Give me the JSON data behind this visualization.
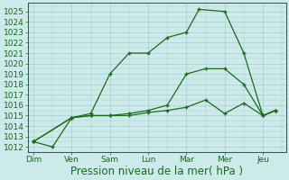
{
  "background_color": "#cceaea",
  "grid_color": "#aacccc",
  "line_color": "#1a6b1a",
  "x_labels": [
    "Dim",
    "Ven",
    "Sam",
    "Lun",
    "Mar",
    "Mer",
    "Jeu"
  ],
  "x_ticks": [
    0,
    1,
    2,
    3,
    4,
    5,
    6
  ],
  "series1_x": [
    0,
    0.5,
    1.0,
    1.5,
    2.0,
    2.5,
    3.0,
    3.5,
    4.0,
    4.33,
    5.0,
    5.5,
    6.0,
    6.33
  ],
  "series1_y": [
    1012.5,
    1012.0,
    1014.8,
    1015.2,
    1019.0,
    1021.0,
    1021.0,
    1022.5,
    1023.0,
    1025.2,
    1025.0,
    1021.0,
    1015.0,
    1015.5
  ],
  "series2_x": [
    0,
    1.0,
    1.5,
    2.0,
    2.5,
    3.0,
    3.5,
    4.0,
    4.5,
    5.0,
    5.5,
    6.0,
    6.33
  ],
  "series2_y": [
    1012.5,
    1014.8,
    1015.0,
    1015.0,
    1015.2,
    1015.5,
    1016.0,
    1019.0,
    1019.5,
    1019.5,
    1018.0,
    1015.0,
    1015.5
  ],
  "series3_x": [
    0,
    1.0,
    1.5,
    2.0,
    2.5,
    3.0,
    3.5,
    4.0,
    4.5,
    5.0,
    5.5,
    6.0,
    6.33
  ],
  "series3_y": [
    1012.5,
    1014.8,
    1015.0,
    1015.0,
    1015.0,
    1015.3,
    1015.5,
    1015.8,
    1016.5,
    1015.2,
    1016.2,
    1015.0,
    1015.5
  ],
  "ylim": [
    1011.5,
    1025.8
  ],
  "yticks": [
    1012,
    1013,
    1014,
    1015,
    1016,
    1017,
    1018,
    1019,
    1020,
    1021,
    1022,
    1023,
    1024,
    1025
  ],
  "xlim": [
    -0.15,
    6.6
  ],
  "xlabel": "Pression niveau de la mer( hPa )",
  "xlabel_fontsize": 8.5,
  "tick_fontsize": 6.5
}
